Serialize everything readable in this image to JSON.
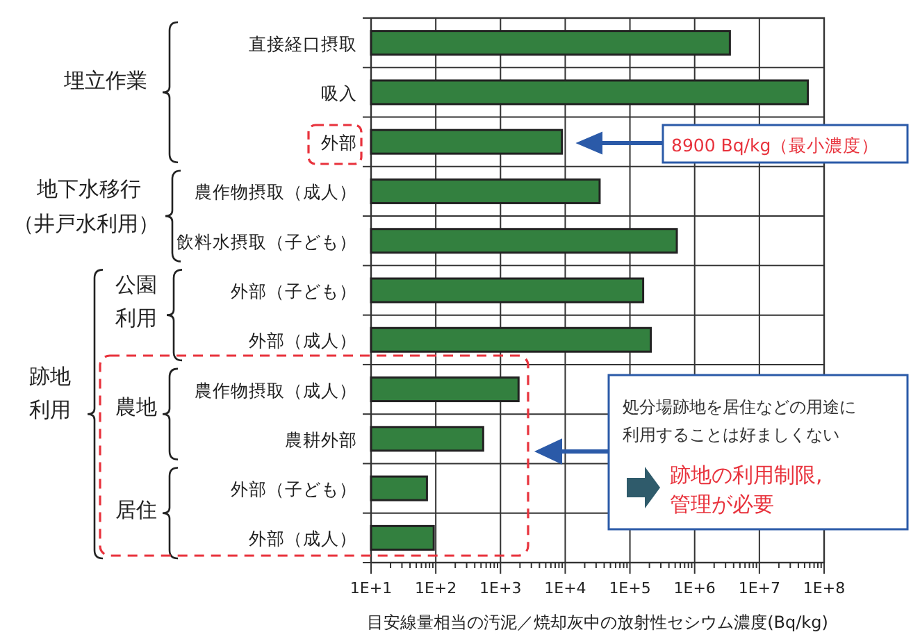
{
  "chart_data": {
    "type": "bar",
    "orientation": "horizontal",
    "log": "x",
    "grid": true,
    "color": "#33803f",
    "categories": [
      "直接経口摂取",
      "吸入",
      "外部",
      "農作物摂取（成人）",
      "飲料水摂取（子ども）",
      "外部（子ども）",
      "外部（成人）",
      "農作物摂取（成人）",
      "農耕外部",
      "外部（子ども）",
      "外部（成人）"
    ],
    "values": [
      3500000,
      56000000,
      8900,
      34000,
      530000,
      160000,
      210000,
      1900,
      540,
      73,
      93
    ],
    "xlim": [
      10,
      100000000
    ],
    "xticks": [
      {
        "value": 10,
        "label": "1E+1"
      },
      {
        "value": 100,
        "label": "1E+2"
      },
      {
        "value": 1000,
        "label": "1E+3"
      },
      {
        "value": 10000,
        "label": "1E+4"
      },
      {
        "value": 100000,
        "label": "1E+5"
      },
      {
        "value": 1000000,
        "label": "1E+6"
      },
      {
        "value": 10000000,
        "label": "1E+7"
      },
      {
        "value": 100000000,
        "label": "1E+8"
      }
    ],
    "xlabel": "目安線量相当の汚泥／焼却灰中の放射性セシウム濃度(Bq/kg)",
    "annotations": [
      "埋立作業",
      "地下水移行",
      "（井戸水利用）",
      "公園",
      "利用",
      "跡地",
      "利用",
      "農地",
      "居住",
      "8900 Bq/kg（最小濃度）",
      "処分場跡地を居住などの用途に",
      "利用することは好ましくない",
      "跡地の利用制限,",
      "管理が必要"
    ]
  }
}
